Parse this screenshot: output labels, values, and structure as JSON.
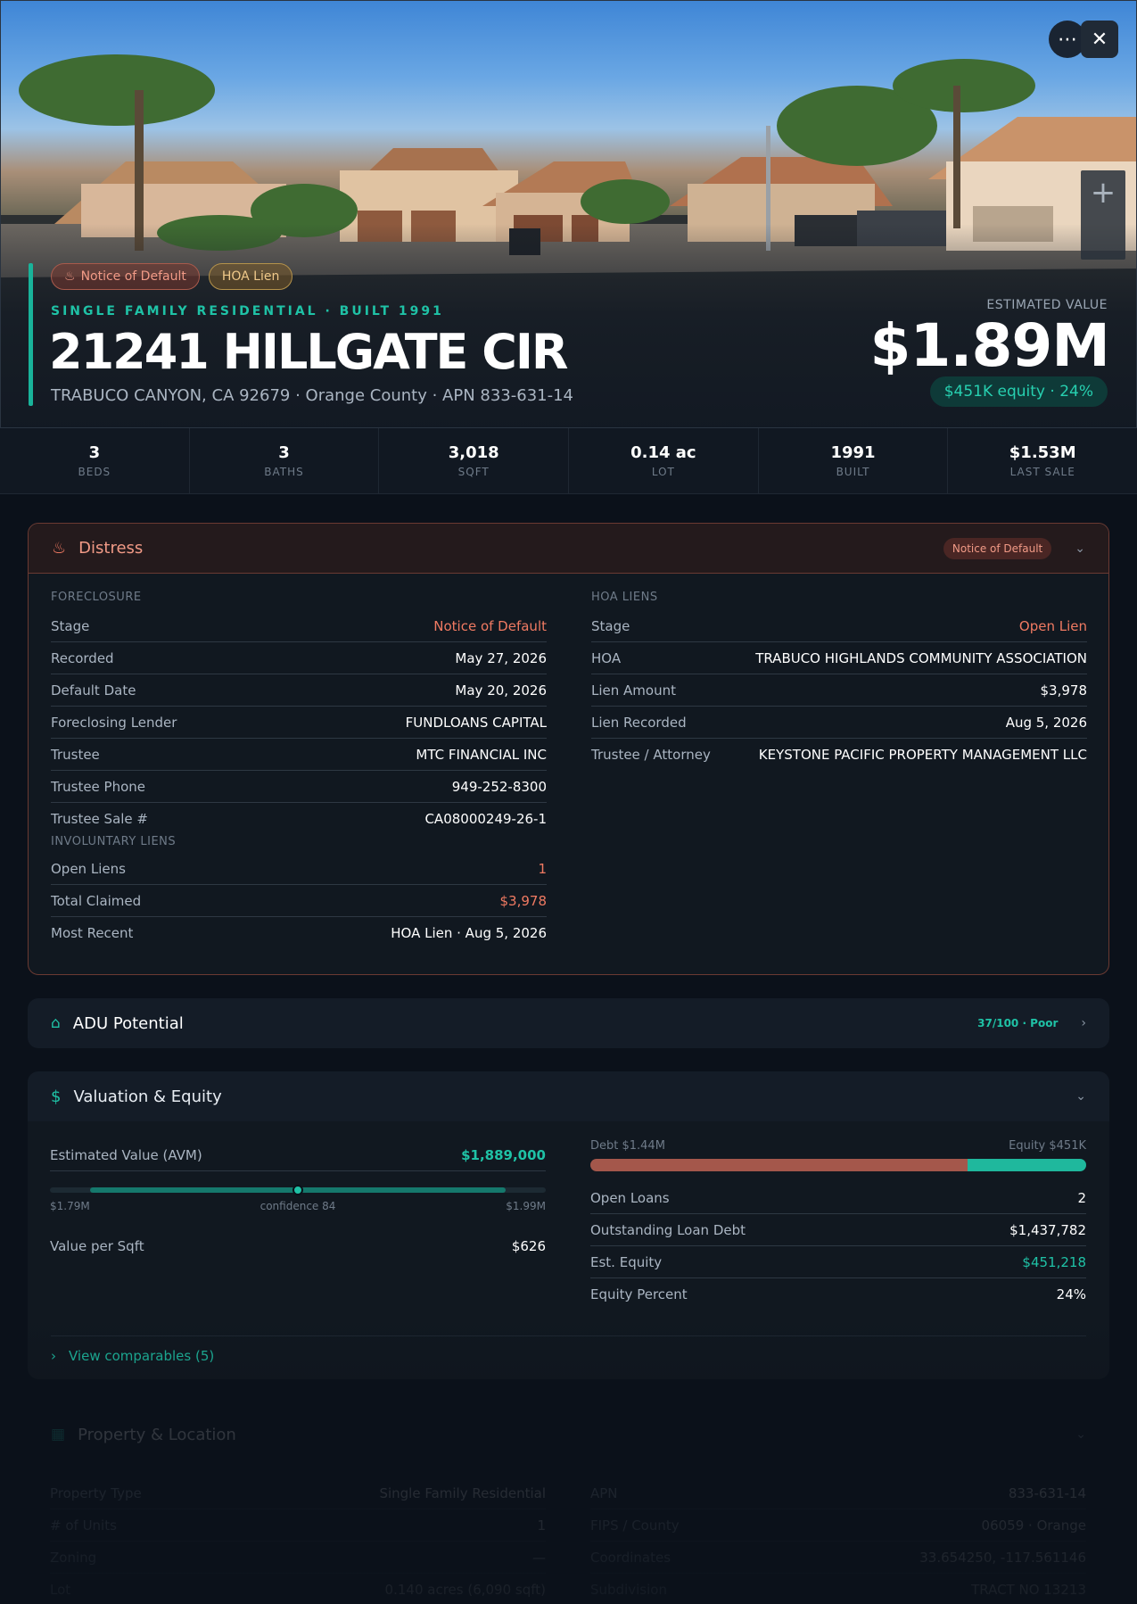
{
  "hero": {
    "badges": [
      "Notice of Default",
      "HOA Lien"
    ],
    "subtitle": "SINGLE FAMILY RESIDENTIAL · BUILT 1991",
    "address": "21241 HILLGATE CIR",
    "location": "TRABUCO CANYON, CA 92679 · Orange County · APN 833-631-14",
    "estimated_label": "ESTIMATED VALUE",
    "estimated_value": "$1.89M",
    "equity_pill": "$451K equity · 24%"
  },
  "stats": [
    {
      "value": "3",
      "label": "BEDS"
    },
    {
      "value": "3",
      "label": "BATHS"
    },
    {
      "value": "3,018",
      "label": "SQFT"
    },
    {
      "value": "0.14 ac",
      "label": "LOT"
    },
    {
      "value": "1991",
      "label": "BUILT"
    },
    {
      "value": "$1.53M",
      "label": "LAST SALE"
    }
  ],
  "distress": {
    "title": "Distress",
    "badge": "Notice of Default",
    "foreclosure_label": "FORECLOSURE",
    "foreclosure": [
      {
        "k": "Stage",
        "v": "Notice of Default"
      },
      {
        "k": "Recorded",
        "v": "May 27, 2026"
      },
      {
        "k": "Default Date",
        "v": "May 20, 2026"
      },
      {
        "k": "Foreclosing Lender",
        "v": "FUNDLOANS CAPITAL"
      },
      {
        "k": "Trustee",
        "v": "MTC FINANCIAL INC"
      },
      {
        "k": "Trustee Phone",
        "v": "949-252-8300"
      },
      {
        "k": "Trustee Sale #",
        "v": "CA08000249-26-1"
      }
    ],
    "involuntary_label": "INVOLUNTARY LIENS",
    "involuntary": [
      {
        "k": "Open Liens",
        "v": "1"
      },
      {
        "k": "Total Claimed",
        "v": "$3,978"
      },
      {
        "k": "Most Recent",
        "v": "HOA Lien · Aug 5, 2026"
      }
    ],
    "hoa_label": "HOA LIENS",
    "hoa": [
      {
        "k": "Stage",
        "v": "Open Lien"
      },
      {
        "k": "HOA",
        "v": "TRABUCO HIGHLANDS COMMUNITY ASSOCIATION"
      },
      {
        "k": "Lien Amount",
        "v": "$3,978"
      },
      {
        "k": "Lien Recorded",
        "v": "Aug 5, 2026"
      },
      {
        "k": "Trustee / Attorney",
        "v": "KEYSTONE PACIFIC PROPERTY MANAGEMENT LLC"
      }
    ]
  },
  "adu": {
    "title": "ADU Potential",
    "score": "37/100 · Poor"
  },
  "valuation": {
    "title": "Valuation & Equity",
    "avm_label": "Estimated Value (AVM)",
    "avm_value": "$1,889,000",
    "range_low": "$1.79M",
    "range_high": "$1.99M",
    "confidence": "confidence 84",
    "range_point_fraction": 0.5,
    "per_sqft_label": "Value per Sqft",
    "per_sqft_value": "$626",
    "debt_label": "Debt $1.44M",
    "equity_label": "Equity $451K",
    "debt_fraction": 0.76,
    "rows": [
      {
        "k": "Open Loans",
        "v": "2"
      },
      {
        "k": "Outstanding Loan Debt",
        "v": "$1,437,782"
      },
      {
        "k": "Est. Equity",
        "v": "$451,218"
      },
      {
        "k": "Equity Percent",
        "v": "24%"
      }
    ],
    "comparables": "View comparables (5)"
  },
  "property": {
    "title": "Property & Location",
    "left": [
      {
        "k": "Property Type",
        "v": "Single Family Residential"
      },
      {
        "k": "# of Units",
        "v": "1"
      },
      {
        "k": "Zoning",
        "v": "—"
      },
      {
        "k": "Lot",
        "v": "0.140 acres (6,090 sqft)"
      }
    ],
    "right": [
      {
        "k": "APN",
        "v": "833-631-14"
      },
      {
        "k": "FIPS / County",
        "v": "06059 · Orange"
      },
      {
        "k": "Coordinates",
        "v": "33.654250, -117.561146"
      },
      {
        "k": "Subdivision",
        "v": "TRACT NO 13213"
      }
    ]
  }
}
